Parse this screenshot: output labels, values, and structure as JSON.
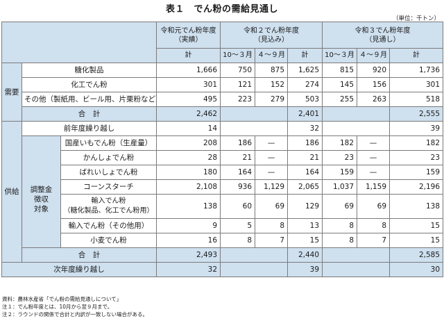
{
  "title": "表１　でん粉の需給見通し",
  "unit": "（単位：千トン）",
  "headers": {
    "h1": "令和元でん粉年度（実績）",
    "h1a": "令和元でん粉年度",
    "h1b": "（実績）",
    "h2a": "令和２でん粉年度",
    "h2b": "（見込み）",
    "h3a": "令和３でん粉年度",
    "h3b": "（見通し）",
    "kei": "計",
    "q1": "10～３月",
    "q2": "４～９月"
  },
  "demand": {
    "label": "需要",
    "rows": [
      {
        "label": "糖化製品",
        "v": [
          "1,666",
          "750",
          "875",
          "1,625",
          "815",
          "920",
          "1,736"
        ]
      },
      {
        "label": "化工でん粉",
        "v": [
          "301",
          "121",
          "152",
          "274",
          "145",
          "156",
          "301"
        ]
      },
      {
        "label": "その他（製紙用、ビール用、片栗粉など）",
        "v": [
          "495",
          "223",
          "279",
          "503",
          "255",
          "263",
          "518"
        ]
      }
    ],
    "total_label": "合　計",
    "total": [
      "2,462",
      "2,401",
      "2,555"
    ]
  },
  "supply": {
    "label": "供給",
    "carry_label": "前年度繰り越し",
    "carry": [
      "14",
      "32",
      "39"
    ],
    "adjust_label": "調整金徴収対象",
    "adjust_l1": "調整金",
    "adjust_l2": "徴収",
    "adjust_l3": "対象",
    "domestic_label": "国産いもでん粉（生産量）",
    "domestic": [
      "208",
      "186",
      "—",
      "186",
      "182",
      "—",
      "182"
    ],
    "kansho_label": "かんしょでん粉",
    "kansho": [
      "28",
      "21",
      "—",
      "21",
      "23",
      "—",
      "23"
    ],
    "bareisho_label": "ばれいしょでん粉",
    "bareisho": [
      "180",
      "164",
      "—",
      "164",
      "159",
      "—",
      "159"
    ],
    "corn_label": "コーンスターチ",
    "corn": [
      "2,108",
      "936",
      "1,129",
      "2,065",
      "1,037",
      "1,159",
      "2,196"
    ],
    "import_a_l1": "輸入でん粉",
    "import_a_l2": "（糖化製品、化工でん粉用）",
    "import_a": [
      "138",
      "60",
      "69",
      "129",
      "69",
      "69",
      "138"
    ],
    "import_other_label": "輸入でん粉（その他用）",
    "import_other": [
      "9",
      "5",
      "8",
      "13",
      "8",
      "8",
      "15"
    ],
    "wheat_label": "小麦でん粉",
    "wheat": [
      "16",
      "8",
      "7",
      "15",
      "8",
      "7",
      "15"
    ],
    "total_label": "合　計",
    "total": [
      "2,493",
      "2,440",
      "2,585"
    ]
  },
  "next": {
    "label": "次年度繰り越し",
    "v": [
      "32",
      "39",
      "30"
    ]
  },
  "notes": [
    "資料：農林水産省「でん粉の需給見通しについて」",
    "注１：でん粉年度とは、10月から翌９月まで。",
    "注２：ラウンドの関係で合計と内訳が一致しない場合がある。"
  ]
}
